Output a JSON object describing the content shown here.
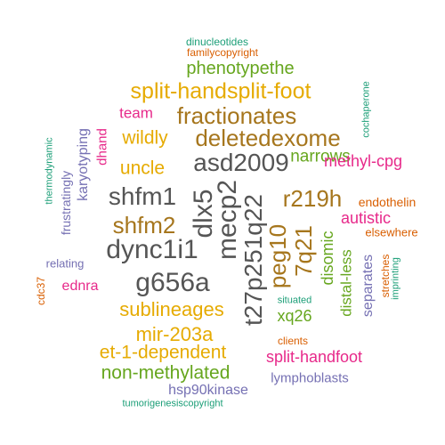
{
  "colors": {
    "teal": "#1b9e77",
    "orange": "#d95f02",
    "purple": "#7570b3",
    "magenta": "#e7298a",
    "green": "#66a61e",
    "gold": "#e6ab02",
    "brown": "#a6761d",
    "gray": "#555555"
  },
  "words": [
    {
      "text": "dinucleotides",
      "color": "teal"
    },
    {
      "text": "familycopyright",
      "color": "orange"
    },
    {
      "text": "phenotypethe",
      "color": "green"
    },
    {
      "text": "split-handsplit-foot",
      "color": "gold"
    },
    {
      "text": "team",
      "color": "magenta"
    },
    {
      "text": "fractionates",
      "color": "brown"
    },
    {
      "text": "wildly",
      "color": "gold"
    },
    {
      "text": "deletedexome",
      "color": "brown"
    },
    {
      "text": "dhand",
      "color": "magenta"
    },
    {
      "text": "karyotyping",
      "color": "purple"
    },
    {
      "text": "thermodynamic",
      "color": "teal"
    },
    {
      "text": "frustratingly",
      "color": "purple"
    },
    {
      "text": "uncle",
      "color": "gold"
    },
    {
      "text": "asd2009",
      "color": "gray"
    },
    {
      "text": "narrows",
      "color": "green"
    },
    {
      "text": "methyl-cpg",
      "color": "magenta"
    },
    {
      "text": "cochaperone",
      "color": "teal"
    },
    {
      "text": "shfm1",
      "color": "gray"
    },
    {
      "text": "dlx5",
      "color": "gray"
    },
    {
      "text": "mecp2",
      "color": "gray"
    },
    {
      "text": "t27p251q22",
      "color": "gray"
    },
    {
      "text": "r219h",
      "color": "brown"
    },
    {
      "text": "endothelin",
      "color": "orange"
    },
    {
      "text": "shfm2",
      "color": "brown"
    },
    {
      "text": "peg10",
      "color": "brown"
    },
    {
      "text": "7q21",
      "color": "brown"
    },
    {
      "text": "autistic",
      "color": "magenta"
    },
    {
      "text": "elsewhere",
      "color": "orange"
    },
    {
      "text": "dync1i1",
      "color": "gray"
    },
    {
      "text": "relating",
      "color": "purple"
    },
    {
      "text": "disomic",
      "color": "green"
    },
    {
      "text": "distal-less",
      "color": "green"
    },
    {
      "text": "separates",
      "color": "purple"
    },
    {
      "text": "stretches",
      "color": "orange"
    },
    {
      "text": "imprinting",
      "color": "teal"
    },
    {
      "text": "cdc37",
      "color": "orange"
    },
    {
      "text": "ednra",
      "color": "magenta"
    },
    {
      "text": "g656a",
      "color": "gray"
    },
    {
      "text": "situated",
      "color": "teal"
    },
    {
      "text": "xq26",
      "color": "green"
    },
    {
      "text": "sublineages",
      "color": "gold"
    },
    {
      "text": "mir-203a",
      "color": "gold"
    },
    {
      "text": "clients",
      "color": "orange"
    },
    {
      "text": "et-1-dependent",
      "color": "gold"
    },
    {
      "text": "split-handfoot",
      "color": "magenta"
    },
    {
      "text": "non-methylated",
      "color": "green"
    },
    {
      "text": "lymphoblasts",
      "color": "purple"
    },
    {
      "text": "hsp90kinase",
      "color": "purple"
    },
    {
      "text": "tumorigenesiscopyright",
      "color": "teal"
    }
  ]
}
